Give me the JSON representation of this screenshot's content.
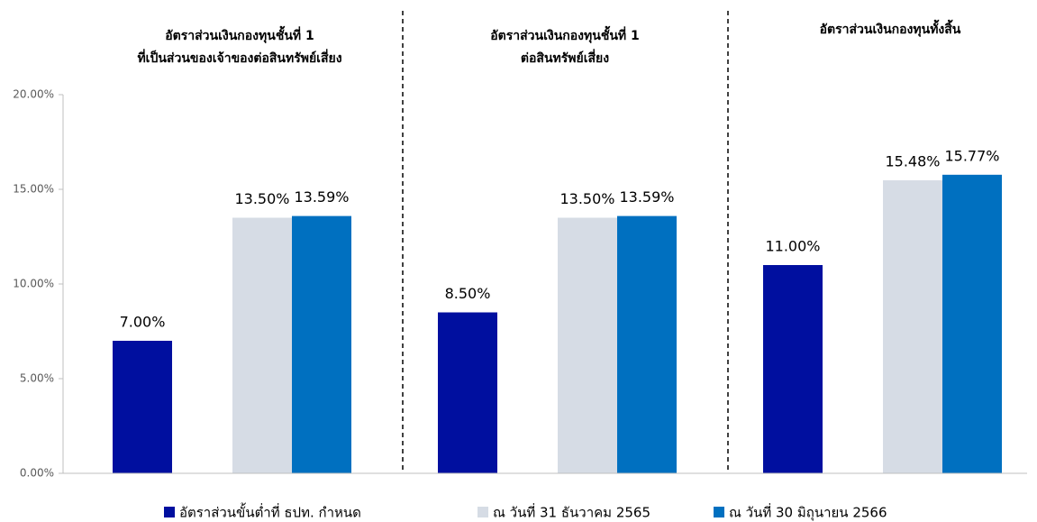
{
  "chart_data": {
    "type": "bar",
    "categories": [
      [
        "อัตราส่วนเงินกองทุนชั้นที่ 1",
        "ที่เป็นส่วนของเจ้าของต่อสินทรัพย์เสี่ยง"
      ],
      [
        "อัตราส่วนเงินกองทุนชั้นที่ 1",
        "ต่อสินทรัพย์เสี่ยง"
      ],
      [
        "อัตราส่วนเงินกองทุนทั้งสิ้น"
      ]
    ],
    "series": [
      {
        "name": "อัตราส่วนขั้นต่ำที่ ธปท. กำหนด",
        "color": "#000f9f",
        "values": [
          7,
          8.5,
          11
        ],
        "value_labels": [
          "7.00%",
          "8.50%",
          "11.00%"
        ]
      },
      {
        "name": "ณ วันที่ 31 ธันวาคม 2565",
        "color": "#d6dce5",
        "values": [
          13.5,
          13.5,
          15.48
        ],
        "value_labels": [
          "13.50%",
          "13.50%",
          "15.48%"
        ]
      },
      {
        "name": "ณ วันที่ 30 มิถุนายน 2566",
        "color": "#0070c0",
        "values": [
          13.59,
          13.59,
          15.77
        ],
        "value_labels": [
          "13.59%",
          "13.59%",
          "15.77%"
        ]
      }
    ],
    "ylim": [
      0,
      20
    ],
    "yticks": [
      {
        "value": 0,
        "label": "0.00%"
      },
      {
        "value": 5,
        "label": "5.00%"
      },
      {
        "value": 10,
        "label": "10.00%"
      },
      {
        "value": 15,
        "label": "15.00%"
      },
      {
        "value": 20,
        "label": "20.00%"
      }
    ],
    "legend": "bottom"
  }
}
